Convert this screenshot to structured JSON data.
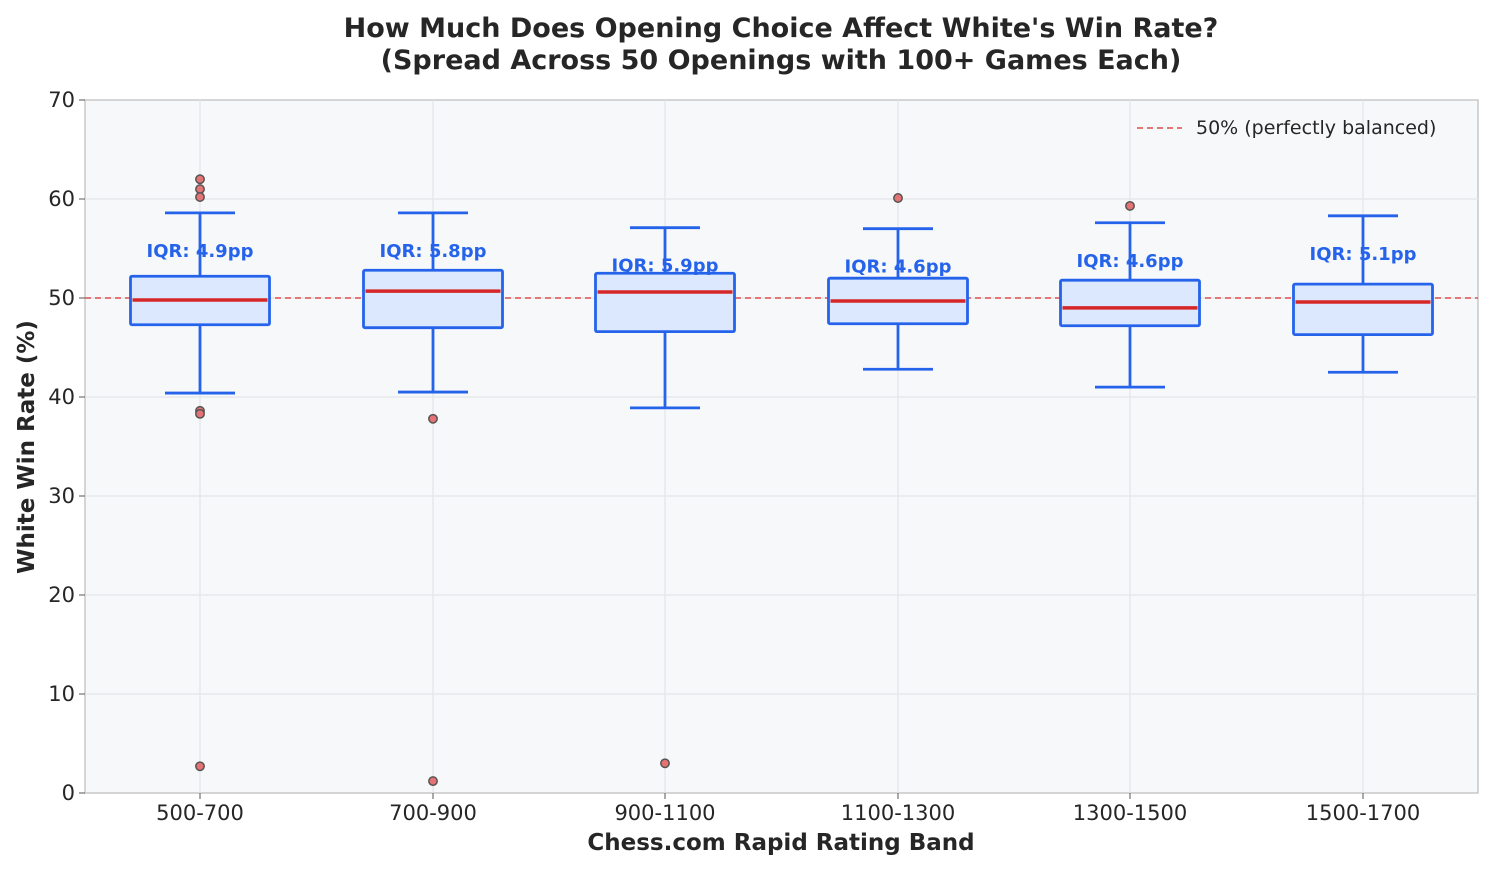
{
  "chart_data": {
    "type": "box",
    "title": "How Much Does Opening Choice Affect White's Win Rate?",
    "subtitle": "(Spread Across 50 Openings with 100+ Games Each)",
    "xlabel": "Chess.com Rapid Rating Band",
    "ylabel": "White Win Rate (%)",
    "ylim": [
      0,
      70
    ],
    "yticks": [
      0,
      10,
      20,
      30,
      40,
      50,
      60,
      70
    ],
    "grid": true,
    "reference_line": {
      "y": 50,
      "label": "50% (perfectly balanced)",
      "color": "#e06666",
      "style": "dashed"
    },
    "legend_position": "top-right",
    "colors": {
      "box_edge": "#2563eb",
      "box_fill": "#dbe8fd",
      "median": "#d62728",
      "outlier_fill": "#e57373",
      "outlier_edge": "#555555",
      "plot_bg": "#f7f8fa"
    },
    "categories": [
      "500-700",
      "700-900",
      "900-1100",
      "1100-1300",
      "1300-1500",
      "1500-1700"
    ],
    "boxes": [
      {
        "category": "500-700",
        "whisker_low": 40.4,
        "q1": 47.3,
        "median": 49.8,
        "q3": 52.2,
        "whisker_high": 58.6,
        "outliers": [
          62.0,
          61.0,
          60.2,
          38.6,
          38.3,
          2.7
        ],
        "iqr_label": "IQR: 4.9pp"
      },
      {
        "category": "700-900",
        "whisker_low": 40.5,
        "q1": 47.0,
        "median": 50.7,
        "q3": 52.8,
        "whisker_high": 58.6,
        "outliers": [
          37.8,
          1.2
        ],
        "iqr_label": "IQR: 5.8pp"
      },
      {
        "category": "900-1100",
        "whisker_low": 38.9,
        "q1": 46.6,
        "median": 50.6,
        "q3": 52.5,
        "whisker_high": 57.1,
        "outliers": [
          3.0
        ],
        "iqr_label": "IQR: 5.9pp"
      },
      {
        "category": "1100-1300",
        "whisker_low": 42.8,
        "q1": 47.4,
        "median": 49.7,
        "q3": 52.0,
        "whisker_high": 57.0,
        "outliers": [
          60.1
        ],
        "iqr_label": "IQR: 4.6pp"
      },
      {
        "category": "1300-1500",
        "whisker_low": 41.0,
        "q1": 47.2,
        "median": 49.0,
        "q3": 51.8,
        "whisker_high": 57.6,
        "outliers": [
          59.3
        ],
        "iqr_label": "IQR: 4.6pp"
      },
      {
        "category": "1500-1700",
        "whisker_low": 42.5,
        "q1": 46.3,
        "median": 49.6,
        "q3": 51.4,
        "whisker_high": 58.3,
        "outliers": [],
        "iqr_label": "IQR: 5.1pp"
      }
    ]
  }
}
